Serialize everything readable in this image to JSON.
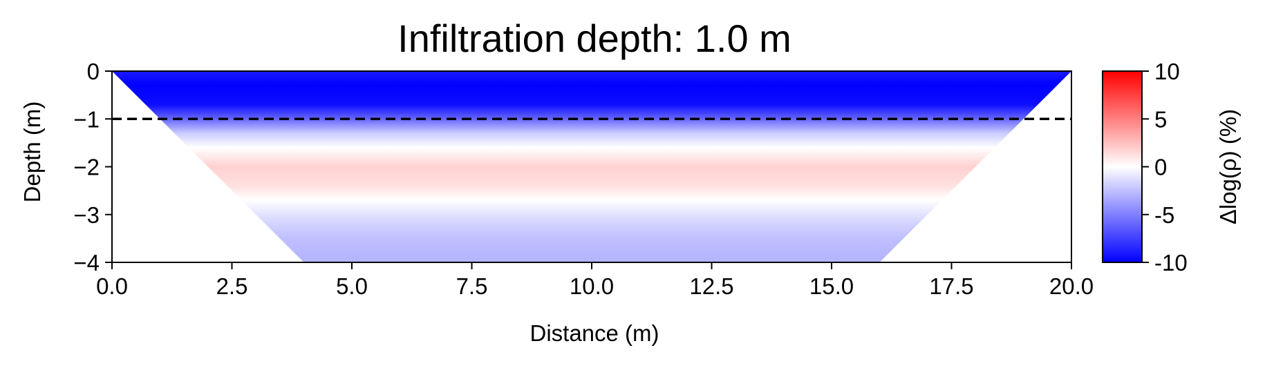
{
  "chart_data": {
    "type": "heatmap",
    "title": "Infiltration depth: 1.0 m",
    "xlabel": "Distance (m)",
    "ylabel": "Depth (m)",
    "xlim": [
      0,
      20
    ],
    "ylim": [
      -4,
      0
    ],
    "x_ticks": [
      0,
      2.5,
      5,
      7.5,
      10,
      12.5,
      15,
      17.5,
      20
    ],
    "x_tick_labels": [
      "0.0",
      "2.5",
      "5.0",
      "7.5",
      "10.0",
      "12.5",
      "15.0",
      "17.5",
      "20.0"
    ],
    "y_ticks": [
      0,
      -1,
      -2,
      -3,
      -4
    ],
    "y_tick_labels": [
      "0",
      "−1",
      "−2",
      "−3",
      "−4"
    ],
    "grid": false,
    "colormap": "bwr",
    "colorbar": {
      "label": "Δlog(ρ) (%)",
      "vmin": -10,
      "vmax": 10,
      "ticks": [
        10,
        5,
        0,
        -5,
        -10
      ],
      "tick_labels": [
        "10",
        "5",
        "0",
        "-5",
        "-10"
      ]
    },
    "domain_trapezoid": {
      "top": [
        [
          0,
          0
        ],
        [
          20,
          0
        ]
      ],
      "bottom": [
        [
          4,
          -4
        ],
        [
          16,
          -4
        ]
      ]
    },
    "depth_profile": [
      {
        "depth": 0.0,
        "value": -9
      },
      {
        "depth": -0.3,
        "value": -10
      },
      {
        "depth": -0.7,
        "value": -9.5
      },
      {
        "depth": -1.0,
        "value": -6
      },
      {
        "depth": -1.3,
        "value": -2
      },
      {
        "depth": -1.6,
        "value": 0
      },
      {
        "depth": -2.0,
        "value": 1.8
      },
      {
        "depth": -2.4,
        "value": 1.2
      },
      {
        "depth": -2.7,
        "value": 0
      },
      {
        "depth": -3.1,
        "value": -1.5
      },
      {
        "depth": -3.5,
        "value": -2.5
      },
      {
        "depth": -4.0,
        "value": -3
      }
    ],
    "annotation": {
      "type": "hline",
      "y": -1.0,
      "style": "dashed",
      "color": "#000000"
    }
  }
}
